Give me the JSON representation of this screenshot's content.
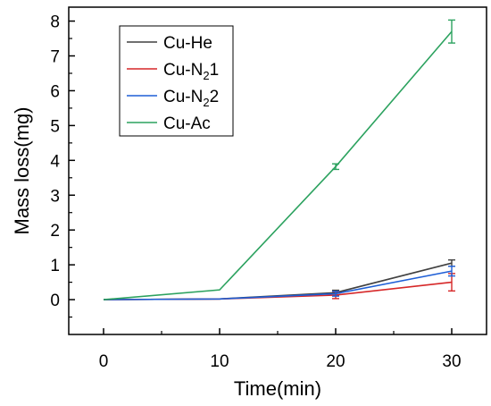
{
  "chart_data": {
    "type": "line",
    "xlabel": "Time(min)",
    "ylabel": "Mass loss(mg)",
    "x": [
      0,
      10,
      20,
      30
    ],
    "xlim": [
      -3,
      33
    ],
    "ylim": [
      -1,
      8.4
    ],
    "xticks": [
      0,
      10,
      20,
      30
    ],
    "yticks": [
      0,
      1,
      2,
      3,
      4,
      5,
      6,
      7,
      8
    ],
    "x_tick_labels": [
      "0",
      "10",
      "20",
      "30"
    ],
    "y_tick_labels": [
      "0",
      "1",
      "2",
      "3",
      "4",
      "5",
      "6",
      "7",
      "8"
    ],
    "grid": false,
    "legend_position": "top-left",
    "series": [
      {
        "name": "Cu-He",
        "legend_main": "Cu-He",
        "legend_sub": "",
        "legend_tail": "",
        "color": "#404040",
        "values": [
          0,
          0.02,
          0.2,
          1.05
        ],
        "errors": [
          0,
          0,
          0.07,
          0.09
        ]
      },
      {
        "name": "Cu-N21",
        "legend_main": "Cu-N",
        "legend_sub": "2",
        "legend_tail": "1",
        "color": "#d62728",
        "values": [
          0,
          0.02,
          0.13,
          0.5
        ],
        "errors": [
          0,
          0,
          0.1,
          0.25
        ]
      },
      {
        "name": "Cu-N22",
        "legend_main": "Cu-N",
        "legend_sub": "2",
        "legend_tail": "2",
        "color": "#1f5fd6",
        "values": [
          0,
          0.02,
          0.17,
          0.82
        ],
        "errors": [
          0,
          0,
          0.07,
          0.14
        ]
      },
      {
        "name": "Cu-Ac",
        "legend_main": "Cu-Ac",
        "legend_sub": "",
        "legend_tail": "",
        "color": "#2ca25f",
        "values": [
          0,
          0.28,
          3.82,
          7.7
        ],
        "errors": [
          0,
          0,
          0.08,
          0.33
        ]
      }
    ]
  }
}
